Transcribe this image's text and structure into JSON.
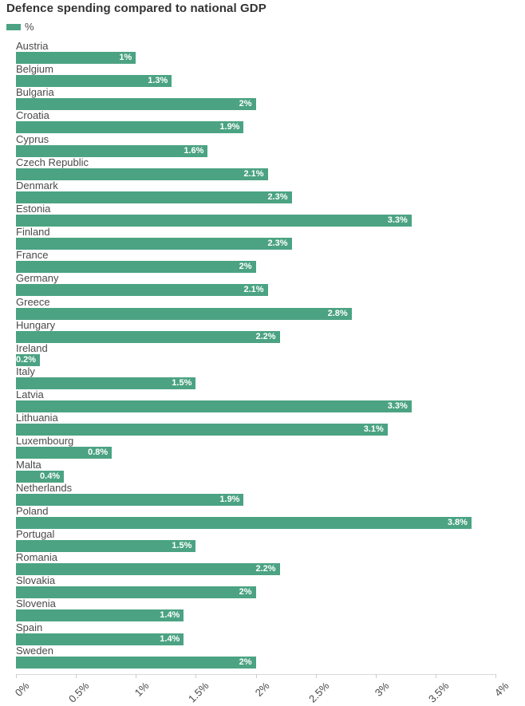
{
  "title": "Defence spending compared to national GDP",
  "legend": {
    "label": "%",
    "swatch_color": "#4ba383"
  },
  "colors": {
    "bar": "#4ba383",
    "value_label": "#ffffff",
    "axis_line": "#d9d9d9",
    "tick": "#cccccc",
    "label_text": "#4a4a4a",
    "title_text": "#333333",
    "background": "#ffffff"
  },
  "chart_data": {
    "type": "bar",
    "orientation": "horizontal",
    "title": "Defence spending compared to national GDP",
    "xlabel": "",
    "ylabel": "",
    "xlim": [
      0,
      4
    ],
    "grid": false,
    "legend_position": "top-left",
    "series_name": "%",
    "x_ticks": [
      "0%",
      "0.5%",
      "1%",
      "1.5%",
      "2%",
      "2.5%",
      "3%",
      "3.5%",
      "4%"
    ],
    "x_tick_values": [
      0,
      0.5,
      1,
      1.5,
      2,
      2.5,
      3,
      3.5,
      4
    ],
    "categories": [
      "Austria",
      "Belgium",
      "Bulgaria",
      "Croatia",
      "Cyprus",
      "Czech Republic",
      "Denmark",
      "Estonia",
      "Finland",
      "France",
      "Germany",
      "Greece",
      "Hungary",
      "Ireland",
      "Italy",
      "Latvia",
      "Lithuania",
      "Luxembourg",
      "Malta",
      "Netherlands",
      "Poland",
      "Portugal",
      "Romania",
      "Slovakia",
      "Slovenia",
      "Spain",
      "Sweden"
    ],
    "values": [
      1,
      1.3,
      2,
      1.9,
      1.6,
      2.1,
      2.3,
      3.3,
      2.3,
      2,
      2.1,
      2.8,
      2.2,
      0.2,
      1.5,
      3.3,
      3.1,
      0.8,
      0.4,
      1.9,
      3.8,
      1.5,
      2.2,
      2,
      1.4,
      1.4,
      2
    ],
    "value_labels": [
      "1%",
      "1.3%",
      "2%",
      "1.9%",
      "1.6%",
      "2.1%",
      "2.3%",
      "3.3%",
      "2.3%",
      "2%",
      "2.1%",
      "2.8%",
      "2.2%",
      "0.2%",
      "1.5%",
      "3.3%",
      "3.1%",
      "0.8%",
      "0.4%",
      "1.9%",
      "3.8%",
      "1.5%",
      "2.2%",
      "2%",
      "1.4%",
      "1.4%",
      "2%"
    ]
  }
}
